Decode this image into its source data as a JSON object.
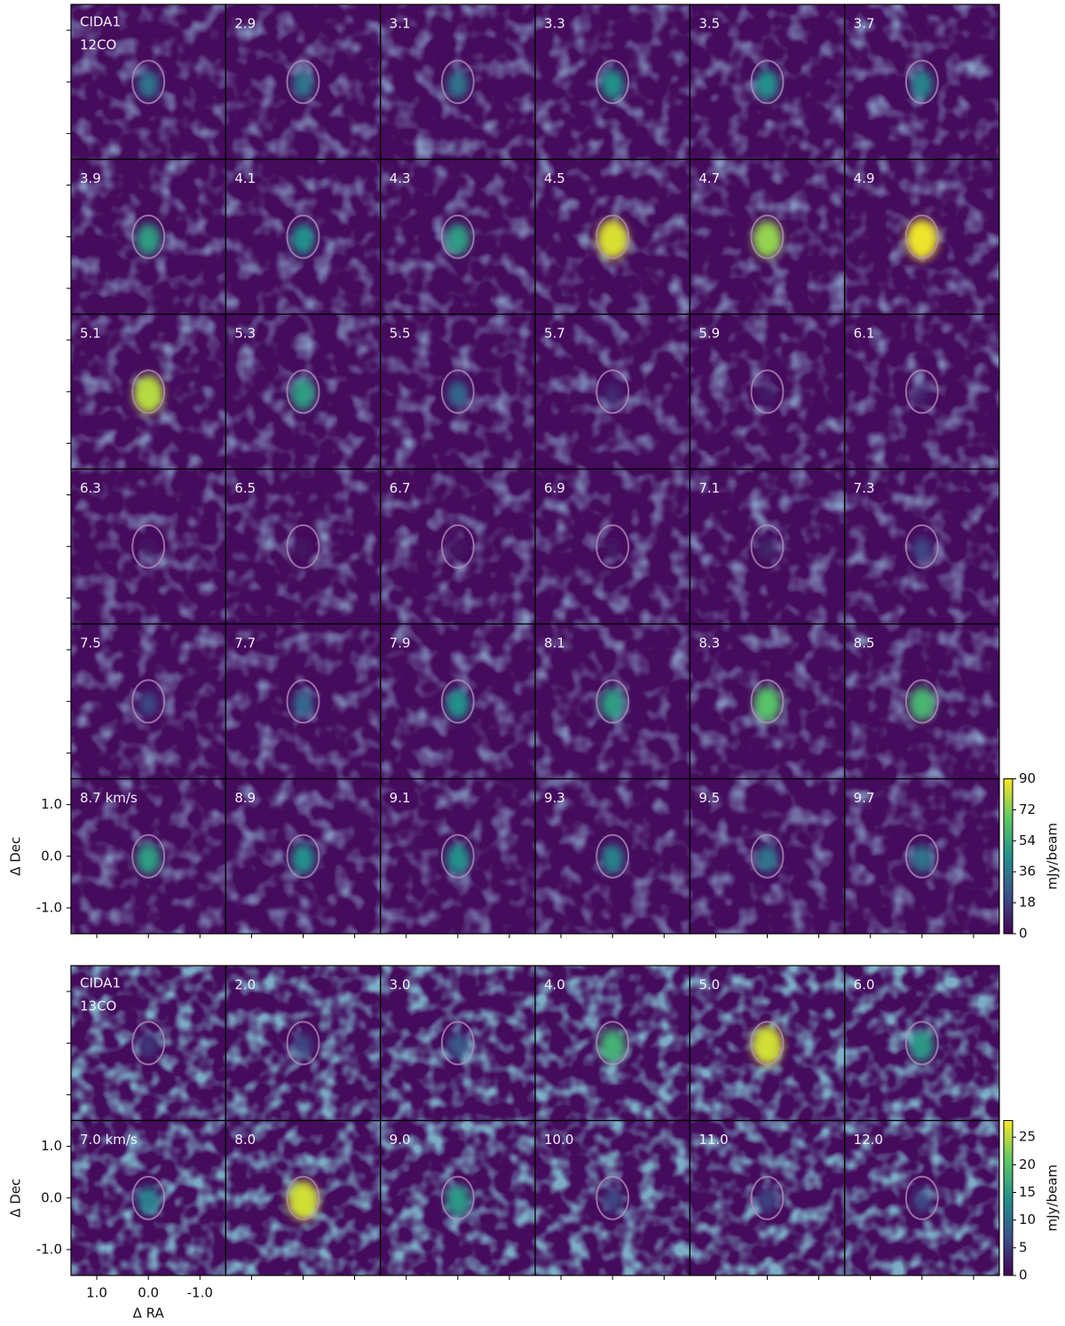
{
  "chart_data": [
    {
      "type": "channel-map",
      "source": "CIDA1",
      "line": "12CO",
      "colormap": "viridis",
      "categories": [
        null,
        "2.9",
        "3.1",
        "3.3",
        "3.5",
        "3.7",
        "3.9",
        "4.1",
        "4.3",
        "4.5",
        "4.7",
        "4.9",
        "5.1",
        "5.3",
        "5.5",
        "5.7",
        "5.9",
        "6.1",
        "6.3",
        "6.5",
        "6.7",
        "6.9",
        "7.1",
        "7.3",
        "7.5",
        "7.7",
        "7.9",
        "8.1",
        "8.3",
        "8.5",
        "8.7 km/s",
        "8.9",
        "9.1",
        "9.3",
        "9.5",
        "9.7"
      ],
      "values": [
        35,
        35,
        35,
        45,
        45,
        40,
        50,
        45,
        50,
        85,
        75,
        88,
        80,
        50,
        30,
        12,
        8,
        8,
        6,
        6,
        6,
        6,
        10,
        20,
        20,
        30,
        45,
        50,
        65,
        60,
        50,
        45,
        45,
        40,
        35,
        35
      ],
      "ylabel": "Δ Dec",
      "xlim": [
        1.5,
        -1.5
      ],
      "ylim": [
        -1.5,
        1.5
      ],
      "xticks": [
        {
          "value": 1,
          "label": "1.0"
        },
        {
          "value": 0,
          "label": "0.0"
        },
        {
          "value": -1,
          "label": "-1.0"
        }
      ],
      "yticks": [
        {
          "value": 1,
          "label": "1.0"
        },
        {
          "value": 0,
          "label": "0.0"
        },
        {
          "value": -1,
          "label": "-1.0"
        }
      ],
      "clim": [
        0,
        90
      ],
      "cticks": [
        0,
        18,
        36,
        54,
        72,
        90
      ],
      "colorbar_label": "mJy/beam"
    },
    {
      "type": "channel-map",
      "source": "CIDA1",
      "line": "13CO",
      "colormap": "viridis",
      "categories": [
        null,
        "2.0",
        "3.0",
        "4.0",
        "5.0",
        "6.0",
        "7.0 km/s",
        "8.0",
        "9.0",
        "10.0",
        "11.0",
        "12.0"
      ],
      "values": [
        5,
        6,
        8,
        18,
        26,
        15,
        12,
        26,
        15,
        6,
        6,
        6
      ],
      "xlabel": "Δ RA",
      "ylabel": "Δ Dec",
      "xlim": [
        1.5,
        -1.5
      ],
      "ylim": [
        -1.5,
        1.5
      ],
      "xticks": [
        {
          "value": 1,
          "label": "1.0"
        },
        {
          "value": 0,
          "label": "0.0"
        },
        {
          "value": -1,
          "label": "-1.0"
        }
      ],
      "yticks": [
        {
          "value": 1,
          "label": "1.0"
        },
        {
          "value": 0,
          "label": "0.0"
        },
        {
          "value": -1,
          "label": "-1.0"
        }
      ],
      "clim": [
        0,
        28
      ],
      "cticks": [
        0,
        5,
        10,
        15,
        20,
        25
      ],
      "colorbar_label": "mJy/beam"
    }
  ]
}
